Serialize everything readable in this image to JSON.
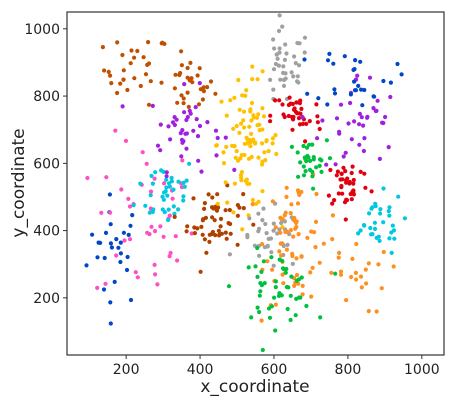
{
  "chart_data": {
    "type": "scatter",
    "xlabel": "x_coordinate",
    "ylabel": "y_coordinate",
    "xlim": [
      40,
      1060
    ],
    "ylim": [
      30,
      1050
    ],
    "x_ticks": [
      200,
      400,
      600,
      800,
      1000
    ],
    "y_ticks": [
      200,
      400,
      600,
      800,
      1000
    ],
    "grid": false,
    "legend": "none",
    "clusters": [
      {
        "color": "#0047c8",
        "n": 28,
        "cx": 170,
        "cy": 340,
        "sx": 50,
        "sy": 110
      },
      {
        "color": "#c05000",
        "n": 30,
        "cx": 230,
        "cy": 880,
        "sx": 60,
        "sy": 70
      },
      {
        "color": "#c05000",
        "n": 28,
        "cx": 370,
        "cy": 830,
        "sx": 45,
        "sy": 55
      },
      {
        "color": "#ff4fc4",
        "n": 45,
        "cx": 250,
        "cy": 420,
        "sx": 90,
        "sy": 170
      },
      {
        "color": "#00c8e0",
        "n": 38,
        "cx": 310,
        "cy": 520,
        "sx": 55,
        "sy": 70
      },
      {
        "color": "#a020e0",
        "n": 42,
        "cx": 360,
        "cy": 700,
        "sx": 65,
        "sy": 80
      },
      {
        "color": "#b04000",
        "n": 55,
        "cx": 440,
        "cy": 430,
        "sx": 50,
        "sy": 60
      },
      {
        "color": "#ffc000",
        "n": 95,
        "cx": 530,
        "cy": 660,
        "sx": 55,
        "sy": 130
      },
      {
        "color": "#a0a0a0",
        "n": 40,
        "cx": 630,
        "cy": 880,
        "sx": 45,
        "sy": 80
      },
      {
        "color": "#a0a0a0",
        "n": 38,
        "cx": 590,
        "cy": 370,
        "sx": 55,
        "sy": 60
      },
      {
        "color": "#ff9020",
        "n": 70,
        "cx": 660,
        "cy": 380,
        "sx": 55,
        "sy": 130
      },
      {
        "color": "#00c040",
        "n": 50,
        "cx": 600,
        "cy": 230,
        "sx": 70,
        "sy": 70
      },
      {
        "color": "#00c040",
        "n": 30,
        "cx": 690,
        "cy": 600,
        "sx": 35,
        "sy": 45
      },
      {
        "color": "#e00010",
        "n": 38,
        "cx": 660,
        "cy": 740,
        "sx": 45,
        "sy": 55
      },
      {
        "color": "#e00010",
        "n": 40,
        "cx": 800,
        "cy": 540,
        "sx": 40,
        "sy": 50
      },
      {
        "color": "#a020e0",
        "n": 38,
        "cx": 830,
        "cy": 720,
        "sx": 70,
        "sy": 100
      },
      {
        "color": "#0047c8",
        "n": 28,
        "cx": 820,
        "cy": 860,
        "sx": 70,
        "sy": 60
      },
      {
        "color": "#00c8e0",
        "n": 32,
        "cx": 870,
        "cy": 420,
        "sx": 55,
        "sy": 60
      },
      {
        "color": "#ff9020",
        "n": 25,
        "cx": 800,
        "cy": 270,
        "sx": 70,
        "sy": 80
      }
    ]
  }
}
